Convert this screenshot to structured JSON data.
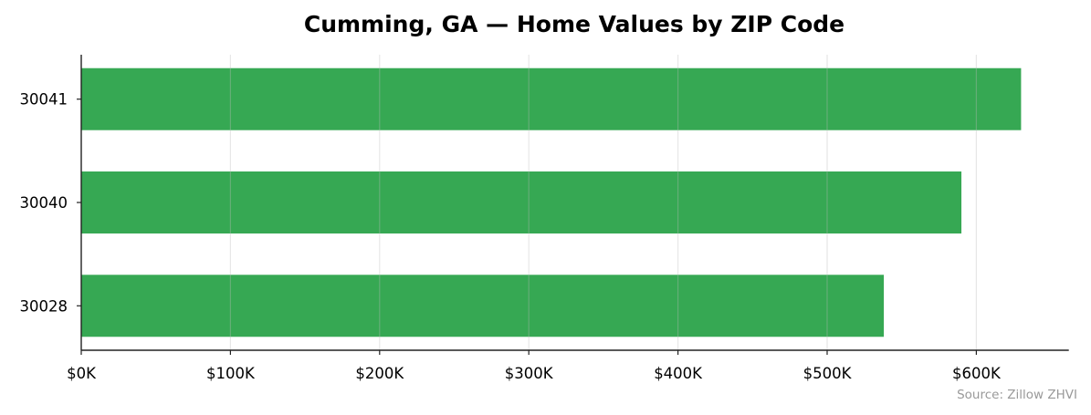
{
  "chart_data": {
    "type": "bar",
    "orientation": "horizontal",
    "title": "Cumming, GA — Home Values by ZIP Code",
    "categories": [
      "30028",
      "30040",
      "30041"
    ],
    "values": [
      538000,
      590000,
      630000
    ],
    "xlim": [
      0,
      662000
    ],
    "xticks": [
      0,
      100000,
      200000,
      300000,
      400000,
      500000,
      600000
    ],
    "xtick_labels": [
      "$0K",
      "$100K",
      "$200K",
      "$300K",
      "$400K",
      "$500K",
      "$600K"
    ],
    "xlabel": "",
    "ylabel": "",
    "grid": "vertical",
    "bar_color": "#36a853",
    "annotation": "Source: Zillow ZHVI"
  }
}
